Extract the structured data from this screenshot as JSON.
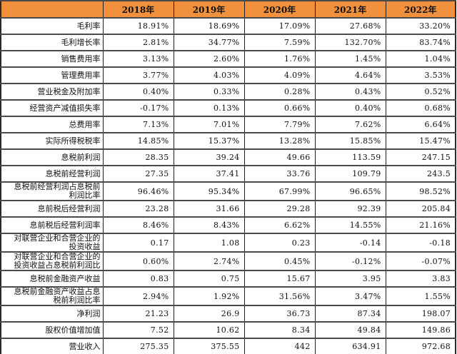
{
  "colors": {
    "header_bg": "#F2913D",
    "header_text": "#151515",
    "grid_horizontal": "#4a4a4a",
    "grid_vertical": "#1f1f1f",
    "cell_bg": "#FFFFFF"
  },
  "corner_label": "",
  "chart_data": {
    "type": "table",
    "title": "",
    "columns": [
      "",
      "2018年",
      "2019年",
      "2020年",
      "2021年",
      "2022年"
    ],
    "rows": [
      {
        "label": "毛利率",
        "values": [
          "18.91%",
          "18.69%",
          "17.09%",
          "27.68%",
          "33.20%"
        ]
      },
      {
        "label": "毛利增长率",
        "values": [
          "2.81%",
          "34.77%",
          "7.59%",
          "132.70%",
          "83.74%"
        ]
      },
      {
        "label": "销售费用率",
        "values": [
          "3.13%",
          "2.60%",
          "1.76%",
          "1.45%",
          "1.04%"
        ]
      },
      {
        "label": "管理费用率",
        "values": [
          "3.77%",
          "4.03%",
          "4.09%",
          "4.64%",
          "3.53%"
        ]
      },
      {
        "label": "营业税金及附加率",
        "values": [
          "0.40%",
          "0.33%",
          "0.28%",
          "0.43%",
          "0.52%"
        ]
      },
      {
        "label": "经营资产减值损失率",
        "values": [
          "-0.17%",
          "0.13%",
          "0.66%",
          "0.40%",
          "0.68%"
        ]
      },
      {
        "label": "总费用率",
        "values": [
          "7.13%",
          "7.01%",
          "7.79%",
          "7.62%",
          "6.64%"
        ]
      },
      {
        "label": "实际所得税税率",
        "values": [
          "14.85%",
          "15.37%",
          "13.28%",
          "15.85%",
          "15.47%"
        ]
      },
      {
        "label": "息税前利润",
        "values": [
          "28.35",
          "39.24",
          "49.66",
          "113.59",
          "247.15"
        ]
      },
      {
        "label": "息税前经营利润",
        "values": [
          "27.35",
          "37.41",
          "33.76",
          "109.79",
          "243.5"
        ]
      },
      {
        "label": "息税前经营利润占息税前\n利润比率",
        "values": [
          "96.46%",
          "95.34%",
          "67.99%",
          "96.65%",
          "98.52%"
        ]
      },
      {
        "label": "息前税后经营利润",
        "values": [
          "23.28",
          "31.66",
          "29.28",
          "92.39",
          "205.84"
        ]
      },
      {
        "label": "息前税后经营利润率",
        "values": [
          "8.46%",
          "8.43%",
          "6.62%",
          "14.55%",
          "21.16%"
        ]
      },
      {
        "label": "对联营企业和合营企业的\n投资收益",
        "values": [
          "0.17",
          "1.08",
          "0.23",
          "-0.14",
          "-0.18"
        ]
      },
      {
        "label": "对联营企业和合营企业的\n投资收益占息税前利润比",
        "values": [
          "0.60%",
          "2.74%",
          "0.45%",
          "-0.12%",
          "-0.07%"
        ]
      },
      {
        "label": "息税前金融资产收益",
        "values": [
          "0.83",
          "0.75",
          "15.67",
          "3.95",
          "3.83"
        ]
      },
      {
        "label": "息税前金融资产收益占息\n税前利润比率",
        "values": [
          "2.94%",
          "1.92%",
          "31.56%",
          "3.47%",
          "1.55%"
        ]
      },
      {
        "label": "净利润",
        "values": [
          "21.23",
          "26.9",
          "36.73",
          "87.34",
          "198.07"
        ]
      },
      {
        "label": "股权价值增加值",
        "values": [
          "7.52",
          "10.62",
          "8.34",
          "49.84",
          "149.86"
        ]
      },
      {
        "label": "营业收入",
        "values": [
          "275.35",
          "375.55",
          "442",
          "634.91",
          "972.68"
        ]
      }
    ]
  }
}
